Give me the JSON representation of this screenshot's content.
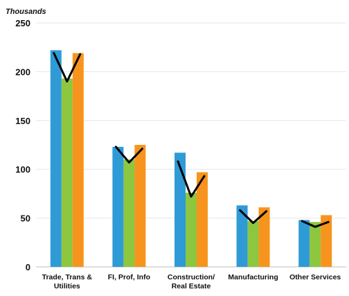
{
  "chart_data": {
    "type": "bar",
    "unit_label": "Thousands",
    "yticks": [
      "0",
      "50",
      "100",
      "150",
      "200",
      "250"
    ],
    "ylim": [
      0,
      250
    ],
    "grid": true,
    "categories": [
      [
        "Trade, Trans &",
        "Utilities"
      ],
      [
        "FI, Prof, Info"
      ],
      [
        "Construction/",
        "Real Estate"
      ],
      [
        "Manufacturing"
      ],
      [
        "Other Services"
      ]
    ],
    "series": [
      {
        "color": "#2e9bd6",
        "values": [
          222,
          123,
          117,
          63,
          48
        ]
      },
      {
        "color": "#8dc63f",
        "values": [
          193,
          110,
          76,
          47,
          46
        ]
      },
      {
        "color": "#f7941d",
        "values": [
          219,
          125,
          97,
          61,
          53
        ]
      }
    ],
    "trend_line": {
      "color": "#000000",
      "values": [
        [
          219,
          190,
          218
        ],
        [
          123,
          107,
          121
        ],
        [
          108,
          72,
          93
        ],
        [
          58,
          45,
          57
        ],
        [
          47,
          41,
          46
        ]
      ]
    }
  }
}
